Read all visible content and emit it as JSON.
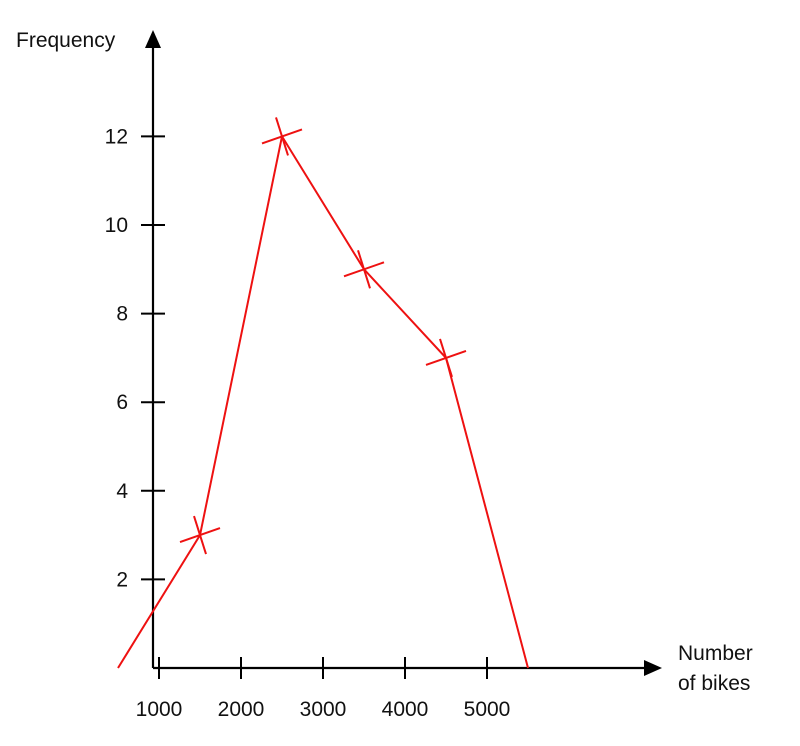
{
  "chart_data": {
    "type": "line",
    "title": "",
    "ylabel": "Frequency",
    "xlabel_lines": [
      "Number",
      "of bikes"
    ],
    "x_ticks": [
      1000,
      2000,
      3000,
      4000,
      5000
    ],
    "y_ticks": [
      2,
      4,
      6,
      8,
      10,
      12
    ],
    "xlim": [
      -500,
      6000
    ],
    "ylim": [
      0,
      14
    ],
    "grid": false,
    "series": [
      {
        "color": "#ee1111",
        "points": [
          {
            "x": 500,
            "y": 0
          },
          {
            "x": 1500,
            "y": 3
          },
          {
            "x": 2500,
            "y": 12
          },
          {
            "x": 3500,
            "y": 9
          },
          {
            "x": 4500,
            "y": 7
          },
          {
            "x": 5500,
            "y": 0
          }
        ],
        "markers": [
          {
            "x": 1500,
            "y": 3
          },
          {
            "x": 2500,
            "y": 12
          },
          {
            "x": 3500,
            "y": 9
          },
          {
            "x": 4500,
            "y": 7
          }
        ]
      }
    ]
  }
}
